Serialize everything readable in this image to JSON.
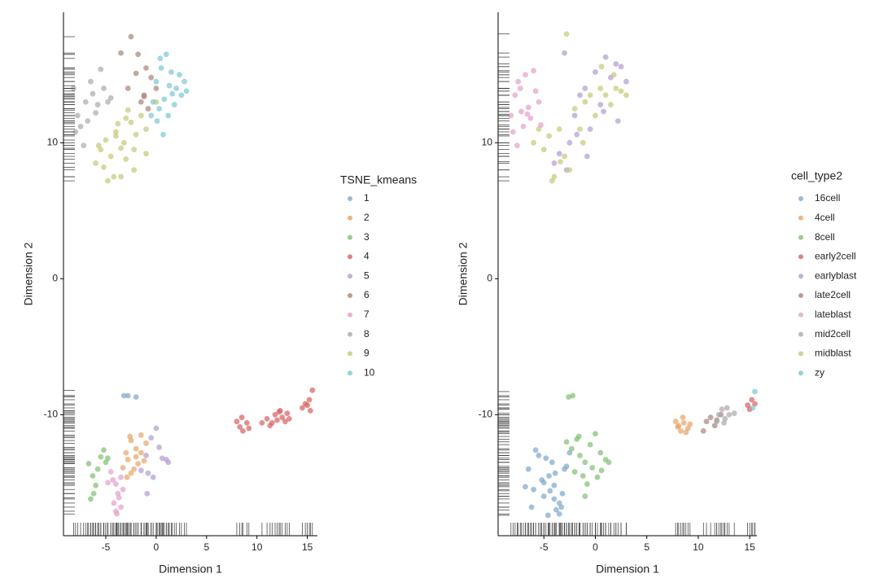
{
  "chart_data": [
    {
      "type": "scatter",
      "x_label": "Dimension 1",
      "y_label": "Dimension 2",
      "legend_title": "TSNE_kmeans",
      "xlim": [
        -9.2,
        16
      ],
      "ylim": [
        -18.9,
        19.6
      ],
      "xticks": [
        -5,
        0,
        5,
        10,
        15
      ],
      "yticks": [
        -10,
        0,
        10
      ],
      "rug": true,
      "series": [
        {
          "name": "1",
          "color": "#7fa6c9",
          "x": [
            -3.2,
            -2.8,
            -2.0
          ],
          "y": [
            -8.6,
            -8.6,
            -8.7
          ]
        },
        {
          "name": "2",
          "color": "#e8a365",
          "x": [
            -2.5,
            -2,
            -1.5,
            -2.8,
            -1.8,
            -2.2,
            -1,
            -3,
            -2.5,
            -1.5,
            -2,
            -3.3,
            -2.6,
            -1.2,
            -2.9
          ],
          "y": [
            -11.9,
            -12.5,
            -12.8,
            -13.3,
            -13.6,
            -14,
            -12.1,
            -12.8,
            -14.3,
            -11.5,
            -13.1,
            -13.9,
            -11.6,
            -13.4,
            -14.6
          ]
        },
        {
          "name": "3",
          "color": "#7fbf6f",
          "x": [
            -6.7,
            -6.3,
            -5.5,
            -5,
            -6,
            -4.8,
            -6.5,
            -5.8,
            -5.2,
            -6.2
          ],
          "y": [
            -13.6,
            -14.5,
            -13.1,
            -13.5,
            -15.2,
            -13.2,
            -16.2,
            -14,
            -12.6,
            -15.8
          ]
        },
        {
          "name": "4",
          "color": "#d9605f",
          "x": [
            8,
            8.3,
            8.6,
            9,
            9.2,
            8.5,
            10.5,
            11,
            11.3,
            11.8,
            12,
            12.2,
            12.5,
            12.8,
            13,
            11.5,
            12.3,
            13.2,
            14.5,
            15,
            15.2,
            15.5,
            15.3,
            14.8
          ],
          "y": [
            -10.5,
            -10.9,
            -11.2,
            -10.6,
            -11,
            -10.2,
            -10.6,
            -10.3,
            -10.8,
            -10,
            -10.4,
            -9.8,
            -10.2,
            -10.5,
            -9.9,
            -10.6,
            -9.7,
            -10.3,
            -9.5,
            -9.3,
            -8.9,
            -8.2,
            -9.7,
            -9.2
          ]
        },
        {
          "name": "5",
          "color": "#b49bd0",
          "x": [
            -1,
            -0.5,
            0,
            1,
            1.2,
            0.3,
            -0.8,
            -1.5,
            -0.3,
            -0.9,
            0.6
          ],
          "y": [
            -13,
            -11.7,
            -11,
            -13.3,
            -13.5,
            -12.4,
            -14.3,
            -14.1,
            -14.6,
            -15.8,
            -13.2
          ]
        },
        {
          "name": "6",
          "color": "#a88379",
          "x": [
            -2.5,
            -1.8,
            -1,
            -0.5,
            0,
            -1.2,
            -3.5,
            -1.5,
            -0.8,
            -2.8,
            -2,
            -1.2
          ],
          "y": [
            17.8,
            16.5,
            15.5,
            14.8,
            14,
            13.5,
            16.6,
            13,
            12.5,
            14,
            15.1,
            13.4
          ]
        },
        {
          "name": "7",
          "color": "#e3a0c8",
          "x": [
            -4.5,
            -4,
            -3.5,
            -3.8,
            -4.2,
            -3.3,
            -4.8,
            -3.9,
            -3.5,
            -4.3,
            -3.7,
            -4
          ],
          "y": [
            -14.2,
            -15.1,
            -14.6,
            -15.8,
            -16.5,
            -15.5,
            -15,
            -17.3,
            -16.8,
            -14.8,
            -16.1,
            -17.1
          ]
        },
        {
          "name": "8",
          "color": "#aaaaaa",
          "x": [
            -8.2,
            -7.8,
            -7,
            -6.5,
            -6,
            -5.5,
            -4.8,
            -7.5,
            -6.8,
            -5.8,
            -5.2,
            -4.5,
            -8,
            -6.3,
            -7.2
          ],
          "y": [
            14,
            12,
            13,
            14.5,
            12.2,
            15.4,
            13,
            11.2,
            11.6,
            12.8,
            14,
            13.3,
            10.8,
            13.6,
            9.8
          ]
        },
        {
          "name": "9",
          "color": "#c5c878",
          "x": [
            -6,
            -5.5,
            -5,
            -4.5,
            -4,
            -3.5,
            -3,
            -2.5,
            -2,
            -1.5,
            -1,
            -5.2,
            -4.2,
            -3.8,
            -3.2,
            -2.8,
            -2.2,
            -4.8,
            -3.5,
            -4,
            -1,
            0,
            -3,
            -2.2,
            -5.7
          ],
          "y": [
            8.5,
            9.5,
            10.2,
            9,
            10.5,
            9.6,
            8.8,
            11.5,
            10.6,
            12,
            11,
            8.2,
            7.5,
            11.4,
            10,
            12.4,
            9.5,
            7.2,
            7.5,
            10.8,
            9.2,
            13,
            11.8,
            8,
            9.8
          ]
        },
        {
          "name": "10",
          "color": "#7cc6d4",
          "x": [
            0,
            0.5,
            1,
            1.5,
            2,
            2.5,
            3,
            0.3,
            0.8,
            1.3,
            1.8,
            2.3,
            -0.3,
            0.7,
            1.2,
            2.8,
            0.1,
            1.6,
            -0.5,
            0.4
          ],
          "y": [
            14.5,
            15.5,
            16.5,
            15.2,
            14,
            13.5,
            13.8,
            12.5,
            13.2,
            14.2,
            12.8,
            15,
            13,
            10.6,
            12,
            14.5,
            11.6,
            13.6,
            12,
            16.2
          ]
        }
      ]
    },
    {
      "type": "scatter",
      "x_label": "Dimension 1",
      "y_label": "Dimension 2",
      "legend_title": "cell_type2",
      "xlim": [
        -9.45,
        15.7
      ],
      "ylim": [
        -18.9,
        19.6
      ],
      "xticks": [
        -5,
        0,
        5,
        10,
        15
      ],
      "yticks": [
        -10,
        0,
        10
      ],
      "rug": true,
      "series": [
        {
          "name": "16cell",
          "color": "#7fa6c9",
          "x": [
            -6.5,
            -6,
            -5.5,
            -5,
            -4.5,
            -4,
            -3.5,
            -3,
            -2.5,
            -6.2,
            -5.2,
            -4.2,
            -3.8,
            -3.2,
            -4.8,
            -5.8,
            -4,
            -3.5,
            -3.9,
            -4.4,
            -6.8,
            -2.8,
            -5,
            -3.3,
            -4.6
          ],
          "y": [
            -14,
            -15.5,
            -13,
            -16,
            -14.5,
            -15.2,
            -16.5,
            -14,
            -12.8,
            -16.8,
            -14.8,
            -13.5,
            -17,
            -15.8,
            -13.2,
            -12.6,
            -16.2,
            -17.3,
            -14.3,
            -15.6,
            -15.3,
            -13.8,
            -15,
            -16.8,
            -17.4
          ]
        },
        {
          "name": "4cell",
          "color": "#e8a365",
          "x": [
            7.8,
            8,
            8.3,
            8.6,
            9,
            9.2,
            8.5,
            8.8,
            8.1
          ],
          "y": [
            -10.5,
            -10.9,
            -11.2,
            -10.6,
            -11,
            -10.7,
            -10.2,
            -11.3,
            -10.8
          ]
        },
        {
          "name": "8cell",
          "color": "#7fbf6f",
          "x": [
            -2.8,
            -2.3,
            -1.8,
            -1.5,
            -1,
            -0.5,
            0,
            0.5,
            1,
            1.3,
            -2,
            -1.2,
            -0.3,
            0.6,
            -1.6,
            -0.8,
            0.2,
            -2.6,
            -2.2,
            -1
          ],
          "y": [
            -12,
            -12.5,
            -11.8,
            -13,
            -13.5,
            -12.2,
            -11.4,
            -12.8,
            -13.3,
            -13.5,
            -14.2,
            -14.5,
            -13.9,
            -14.1,
            -11.6,
            -15.1,
            -14.6,
            -8.7,
            -8.6,
            -16
          ]
        },
        {
          "name": "early2cell",
          "color": "#d9605f",
          "x": [
            14.8,
            15.2,
            15.5,
            15
          ],
          "y": [
            -9.3,
            -8.9,
            -9.2,
            -9.6
          ]
        },
        {
          "name": "earlyblast",
          "color": "#b49bd0",
          "x": [
            -3,
            -2,
            -1,
            0,
            1,
            2,
            3,
            -1.5,
            -0.5,
            0.5,
            1.5,
            2.5,
            -2.5,
            -4,
            -3.5,
            -2.8,
            -1.8,
            -0.8,
            0.8,
            2.2
          ],
          "y": [
            16.6,
            12,
            14,
            15.2,
            16.3,
            15.8,
            14.5,
            13.5,
            11,
            12.8,
            14.8,
            15.6,
            10,
            8.5,
            9.2,
            8,
            10.6,
            9,
            12.3,
            11.6
          ]
        },
        {
          "name": "late2cell",
          "color": "#a88379",
          "x": [
            10.8,
            11.2,
            11.6,
            10.5,
            11.8,
            12.2
          ],
          "y": [
            -10.5,
            -10.2,
            -10.8,
            -11.2,
            -10.4,
            -10
          ]
        },
        {
          "name": "lateblast",
          "color": "#e3a0c8",
          "x": [
            -8.2,
            -7.8,
            -7.5,
            -7,
            -6.5,
            -6,
            -5.5,
            -8,
            -7.2,
            -6.8,
            -6.3,
            -5.8,
            -7.6,
            -6.6,
            -5.3,
            -7.3
          ],
          "y": [
            12,
            13.5,
            14.5,
            11.2,
            12.6,
            15.3,
            13,
            10.8,
            12.3,
            15,
            11.8,
            13.8,
            9.8,
            12.1,
            11.3,
            14
          ]
        },
        {
          "name": "mid2cell",
          "color": "#aaaaaa",
          "x": [
            12,
            12.3,
            12.6,
            13,
            13.5,
            12.8,
            11.8,
            12.5
          ],
          "y": [
            -10,
            -9.6,
            -10.3,
            -10,
            -9.9,
            -9.5,
            -10.5,
            -10.6
          ]
        },
        {
          "name": "midblast",
          "color": "#c5c878",
          "x": [
            -6,
            -5.5,
            -5,
            -4.5,
            -4,
            -3.5,
            -3,
            -2.5,
            -2,
            -1.5,
            -1,
            -0.5,
            0,
            0.5,
            1,
            1.5,
            2,
            2.5,
            3,
            -2.8,
            -4.2,
            -1.2,
            0.6,
            1.8,
            -3.4
          ],
          "y": [
            10,
            11,
            9.5,
            10.5,
            7.5,
            11,
            9,
            8,
            12.5,
            11,
            13,
            13.5,
            12,
            14,
            13.5,
            12.8,
            14,
            13.8,
            13.5,
            18,
            7.2,
            10,
            15.6,
            15,
            8.6
          ]
        },
        {
          "name": "zy",
          "color": "#7cc6d4",
          "x": [
            15.5,
            15.3
          ],
          "y": [
            -8.3,
            -9.5
          ]
        }
      ]
    }
  ]
}
